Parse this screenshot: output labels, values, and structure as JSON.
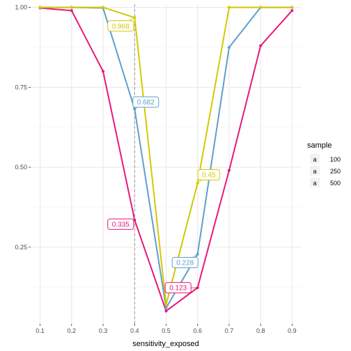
{
  "chart_data": {
    "type": "line",
    "xlabel": "sensitivity_exposed",
    "ylabel": "",
    "x_ticks": [
      0.1,
      0.2,
      0.3,
      0.4,
      0.5,
      0.6,
      0.7,
      0.8,
      0.9
    ],
    "y_ticks": [
      "0.25",
      "0.50",
      "0.75",
      "1.00"
    ],
    "xlim": [
      0.07,
      0.93
    ],
    "ylim": [
      0.01,
      1.01
    ],
    "vline_x": 0.4,
    "grid": true,
    "legend": {
      "title": "sample",
      "placement": "right"
    },
    "series": [
      {
        "name": "100",
        "color": "#e6197a",
        "x": [
          0.1,
          0.2,
          0.3,
          0.4,
          0.5,
          0.6,
          0.7,
          0.8,
          0.9
        ],
        "y": [
          0.998,
          0.99,
          0.8,
          0.335,
          0.05,
          0.123,
          0.49,
          0.88,
          0.99
        ]
      },
      {
        "name": "250",
        "color": "#5f9fcb",
        "x": [
          0.1,
          0.2,
          0.3,
          0.4,
          0.5,
          0.6,
          0.7,
          0.8,
          0.9
        ],
        "y": [
          1.0,
          1.0,
          0.998,
          0.682,
          0.06,
          0.228,
          0.875,
          1.0,
          1.0
        ]
      },
      {
        "name": "500",
        "color": "#d4c800",
        "x": [
          0.1,
          0.2,
          0.3,
          0.4,
          0.5,
          0.6,
          0.7,
          0.8,
          0.9
        ],
        "y": [
          1.0,
          1.0,
          1.0,
          0.968,
          0.07,
          0.45,
          1.0,
          1.0,
          1.0
        ]
      }
    ],
    "annotations": [
      {
        "series": "500",
        "x": 0.4,
        "y": 0.968,
        "text": "0.968"
      },
      {
        "series": "250",
        "x": 0.4,
        "y": 0.682,
        "text": "0.682"
      },
      {
        "series": "100",
        "x": 0.4,
        "y": 0.335,
        "text": "0.335"
      },
      {
        "series": "500",
        "x": 0.6,
        "y": 0.45,
        "text": "0.45"
      },
      {
        "series": "250",
        "x": 0.6,
        "y": 0.228,
        "text": "0.228"
      },
      {
        "series": "100",
        "x": 0.6,
        "y": 0.123,
        "text": "0.123"
      }
    ]
  }
}
